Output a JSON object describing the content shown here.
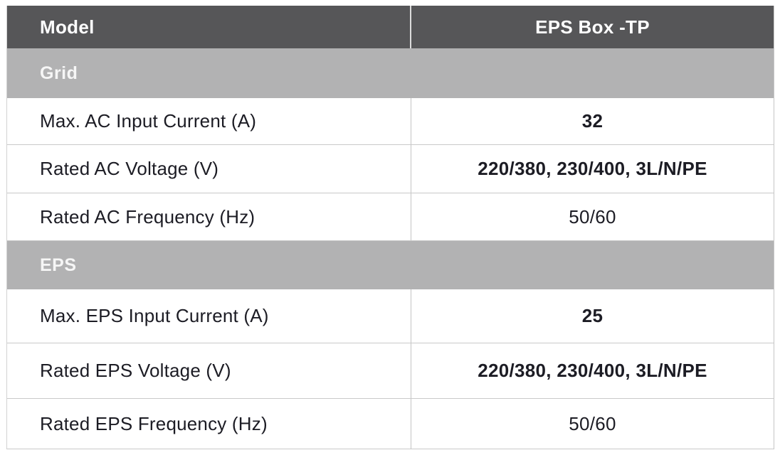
{
  "table": {
    "header": {
      "model_label": "Model",
      "product_label": "EPS Box -TP"
    },
    "sections": [
      {
        "title": "Grid",
        "rows": [
          {
            "label": "Max. AC Input Current (A)",
            "value": "32",
            "value_weight": "700"
          },
          {
            "label": "Rated AC Voltage (V)",
            "value": "220/380, 230/400, 3L/N/PE",
            "value_weight": "700"
          },
          {
            "label": "Rated AC Frequency (Hz)",
            "value": "50/60",
            "value_weight": "400"
          }
        ]
      },
      {
        "title": "EPS",
        "rows": [
          {
            "label": "Max. EPS Input Current (A)",
            "value": "25",
            "value_weight": "700"
          },
          {
            "label": "Rated EPS Voltage (V)",
            "value": "220/380, 230/400, 3L/N/PE",
            "value_weight": "700"
          },
          {
            "label": "Rated EPS Frequency (Hz)",
            "value": "50/60",
            "value_weight": "400"
          }
        ]
      }
    ],
    "colors": {
      "header_bg": "#565658",
      "section_bg": "#b2b2b3",
      "row_bg": "#ffffff",
      "border": "#c9c9c9",
      "text": "#1c1c24",
      "header_text": "#ffffff"
    }
  }
}
